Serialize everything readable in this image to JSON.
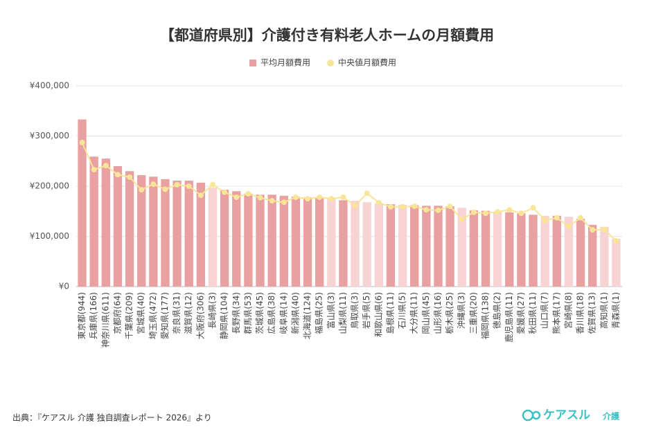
{
  "chart_data": {
    "type": "bar_line",
    "title": "【都道府県別】介護付き有料老人ホームの月額費用",
    "categories": [
      "東京都(944)",
      "兵庫県(166)",
      "神奈川県(611)",
      "京都府(64)",
      "千葉県(209)",
      "宮城県(40)",
      "埼玉県(472)",
      "愛知県(177)",
      "奈良県(31)",
      "滋賀県(12)",
      "大阪府(306)",
      "長崎県(3)",
      "静岡県(104)",
      "長野県(34)",
      "群馬県(53)",
      "茨城県(45)",
      "広島県(38)",
      "岐阜県(14)",
      "新潟県(40)",
      "北海道(124)",
      "福島県(25)",
      "富山県(3)",
      "山梨県(11)",
      "鳥取県(3)",
      "岩手県(5)",
      "和歌山県(6)",
      "島根県(11)",
      "石川県(5)",
      "大分県(11)",
      "岡山県(45)",
      "山形県(16)",
      "栃木県(25)",
      "沖縄県(3)",
      "三重県(20)",
      "福岡県(138)",
      "徳島県(2)",
      "鹿児島県(11)",
      "愛媛県(27)",
      "秋田県(11)",
      "山口県(7)",
      "熊本県(17)",
      "宮崎県(8)",
      "香川県(18)",
      "佐賀県(13)",
      "高知県(1)",
      "青森県(1)"
    ],
    "series": [
      {
        "name": "平均月額費用",
        "type": "bar",
        "color": "#e8a0a0",
        "colors": [
          "#e8a0a0",
          "#e8a0a0",
          "#e8a0a0",
          "#e8a0a0",
          "#e8a0a0",
          "#e8a0a0",
          "#e8a0a0",
          "#e8a0a0",
          "#e8a0a0",
          "#e8a0a0",
          "#e8a0a0",
          "#f8d3d3",
          "#e8a0a0",
          "#e8a0a0",
          "#e8a0a0",
          "#e8a0a0",
          "#e8a0a0",
          "#e8a0a0",
          "#e8a0a0",
          "#e8a0a0",
          "#e8a0a0",
          "#f8d3d3",
          "#e8a0a0",
          "#f8d3d3",
          "#f8d3d3",
          "#f8d3d3",
          "#e8a0a0",
          "#f8d3d3",
          "#e8a0a0",
          "#e8a0a0",
          "#e8a0a0",
          "#e8a0a0",
          "#f8d3d3",
          "#e8a0a0",
          "#e8a0a0",
          "#f8d3d3",
          "#e8a0a0",
          "#e8a0a0",
          "#e8a0a0",
          "#f8d3d3",
          "#e8a0a0",
          "#f8d3d3",
          "#e8a0a0",
          "#e8a0a0",
          "#f8d3d3",
          "#f8d3d3"
        ],
        "values": [
          333000,
          259000,
          255000,
          240000,
          230000,
          222000,
          219000,
          214000,
          211000,
          211000,
          207000,
          197000,
          193000,
          190000,
          185000,
          183000,
          183000,
          181000,
          179000,
          178000,
          177000,
          175000,
          172000,
          171000,
          168000,
          166000,
          164000,
          163000,
          162000,
          161000,
          161000,
          160000,
          157000,
          152000,
          151000,
          149000,
          148000,
          146000,
          143000,
          141000,
          141000,
          139000,
          135000,
          123000,
          119000,
          95000
        ]
      },
      {
        "name": "中央値月額費用",
        "type": "line",
        "color": "#f8e597",
        "values": [
          287000,
          233000,
          241000,
          223000,
          218000,
          193000,
          204000,
          194000,
          203000,
          200000,
          182000,
          203000,
          188000,
          178000,
          185000,
          177000,
          171000,
          168000,
          178000,
          175000,
          178000,
          175000,
          178000,
          161000,
          186000,
          167000,
          159000,
          159000,
          160000,
          153000,
          152000,
          160000,
          134000,
          148000,
          146000,
          149000,
          153000,
          146000,
          157000,
          132000,
          137000,
          120000,
          137000,
          113000,
          114000,
          91000
        ]
      }
    ],
    "ylim": [
      0,
      400000
    ],
    "yticks": [
      {
        "value": 0,
        "label": "¥0"
      },
      {
        "value": 100000,
        "label": "¥100,000"
      },
      {
        "value": 200000,
        "label": "¥200,000"
      },
      {
        "value": 300000,
        "label": "¥300,000"
      },
      {
        "value": 400000,
        "label": "¥400,000"
      }
    ],
    "grid": true,
    "legend": "top"
  },
  "footer": {
    "source": "出典：『ケアスル 介護 独自調査レポート 2026』より",
    "logo": "ケアスル",
    "logo_sub": "介護"
  }
}
